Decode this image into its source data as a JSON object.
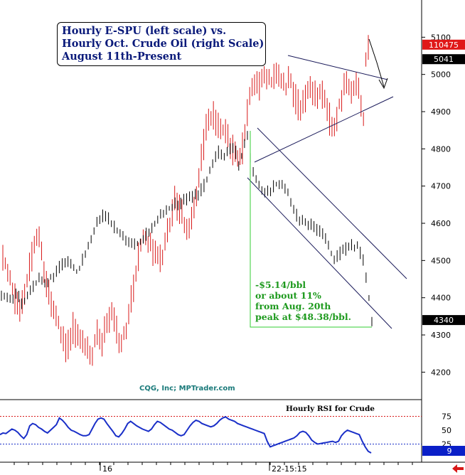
{
  "title_lines": [
    "Hourly E-SPU (left scale) vs.",
    "Hourly Oct. Crude Oil (right Scale)",
    "August 11th-Present"
  ],
  "annotation_lines": [
    "-$5.14/bbl",
    "or about 11%",
    "from Aug. 20th",
    "peak at $48.38/bbl."
  ],
  "watermark": "CQG, Inc; MPTrader.com",
  "colors": {
    "spx": "#d81818",
    "crude": "#000000",
    "rsi": "#1a2fc8",
    "channel": "#1a1a5a",
    "annotation": "#1e9a1e",
    "title": "#0a1a7a"
  },
  "chart_data": [
    {
      "type": "line",
      "title": "",
      "right_axis": {
        "ticks": [
          "5100",
          "5000",
          "4900",
          "4800",
          "4700",
          "4600",
          "4500",
          "4400",
          "4300",
          "4200"
        ],
        "range": [
          4130,
          5200
        ],
        "price_tags": [
          {
            "label": "110475",
            "value": 5080,
            "color": "#e01818"
          },
          {
            "label": "5041",
            "value": 5041,
            "color": "#000000"
          },
          {
            "label": "4340",
            "value": 4340,
            "color": "#000000"
          }
        ]
      },
      "x_axis": {
        "ticks": [
          "16",
          "22-15:15"
        ]
      },
      "series": [
        {
          "key": "spx",
          "style": "bars",
          "values": [
            4510,
            4490,
            4470,
            4450,
            4420,
            4400,
            4390,
            4380,
            4400,
            4420,
            4450,
            4480,
            4510,
            4540,
            4570,
            4550,
            4520,
            4480,
            4440,
            4410,
            4390,
            4370,
            4350,
            4330,
            4300,
            4280,
            4260,
            4270,
            4290,
            4320,
            4310,
            4300,
            4290,
            4280,
            4270,
            4260,
            4250,
            4250,
            4280,
            4300,
            4290,
            4280,
            4310,
            4330,
            4350,
            4360,
            4340,
            4320,
            4290,
            4280,
            4300,
            4320,
            4350,
            4390,
            4430,
            4470,
            4510,
            4540,
            4570,
            4560,
            4550,
            4540,
            4530,
            4520,
            4510,
            4500,
            4510,
            4540,
            4570,
            4600,
            4630,
            4660,
            4650,
            4640,
            4620,
            4600,
            4590,
            4580,
            4600,
            4640,
            4680,
            4720,
            4770,
            4810,
            4850,
            4870,
            4880,
            4890,
            4880,
            4870,
            4860,
            4850,
            4840,
            4830,
            4810,
            4800,
            4790,
            4780,
            4770,
            4800,
            4850,
            4900,
            4940,
            4960,
            4980,
            4990,
            4970,
            4980,
            4990,
            5000,
            4990,
            4980,
            4990,
            5000,
            4990,
            4980,
            4970,
            4960,
            4980,
            4990,
            4950,
            4930,
            4920,
            4910,
            4920,
            4940,
            4950,
            4960,
            4950,
            4940,
            4950,
            4960,
            4950,
            4940,
            4910,
            4880,
            4860,
            4870,
            4890,
            4920,
            4940,
            4960,
            4980,
            4970,
            4960,
            4970,
            4980,
            4960,
            4900,
            4880,
            5040,
            5070
          ]
        },
        {
          "key": "crude",
          "style": "bars",
          "values": [
            4400,
            4405,
            4402,
            4398,
            4395,
            4410,
            4400,
            4380,
            4390,
            4410,
            4420,
            4430,
            4440,
            4450,
            4448,
            4440,
            4445,
            4455,
            4460,
            4470,
            4480,
            4490,
            4500,
            4495,
            4490,
            4480,
            4470,
            4480,
            4500,
            4520,
            4540,
            4560,
            4580,
            4600,
            4610,
            4620,
            4615,
            4610,
            4600,
            4590,
            4580,
            4570,
            4560,
            4555,
            4550,
            4545,
            4540,
            4545,
            4550,
            4560,
            4570,
            4580,
            4590,
            4600,
            4610,
            4620,
            4630,
            4635,
            4640,
            4645,
            4650,
            4652,
            4655,
            4660,
            4665,
            4668,
            4670,
            4675,
            4680,
            4690,
            4700,
            4720,
            4740,
            4760,
            4780,
            4790,
            4785,
            4780,
            4790,
            4800,
            4805,
            4790,
            4760,
            4780,
            4820,
            4840,
            4780,
            4740,
            4720,
            4700,
            4690,
            4680,
            4685,
            4690,
            4700,
            4705,
            4710,
            4700,
            4690,
            4680,
            4660,
            4640,
            4620,
            4610,
            4605,
            4600,
            4598,
            4595,
            4590,
            4585,
            4580,
            4570,
            4560,
            4540,
            4520,
            4500,
            4510,
            4520,
            4525,
            4530,
            4535,
            4540,
            4535,
            4540,
            4520,
            4500,
            4450,
            4400,
            4340
          ]
        },
        {
          "key": "rsi",
          "style": "line",
          "levels": [
            75,
            50,
            25
          ],
          "current": "9",
          "label": "Hourly RSI for Crude",
          "values": [
            42,
            45,
            44,
            48,
            52,
            50,
            46,
            40,
            35,
            42,
            58,
            62,
            60,
            55,
            52,
            48,
            45,
            50,
            55,
            60,
            72,
            68,
            62,
            55,
            50,
            48,
            45,
            42,
            40,
            40,
            42,
            52,
            62,
            70,
            72,
            70,
            62,
            55,
            48,
            40,
            38,
            44,
            52,
            62,
            66,
            62,
            58,
            55,
            52,
            50,
            48,
            52,
            60,
            66,
            64,
            60,
            56,
            52,
            50,
            46,
            42,
            40,
            42,
            50,
            58,
            64,
            68,
            66,
            62,
            60,
            58,
            56,
            58,
            62,
            68,
            72,
            74,
            70,
            68,
            66,
            62,
            60,
            58,
            56,
            54,
            52,
            50,
            48,
            46,
            44,
            30,
            20,
            22,
            24,
            26,
            28,
            30,
            32,
            34,
            36,
            40,
            46,
            48,
            46,
            40,
            32,
            28,
            25,
            26,
            27,
            28,
            29,
            30,
            28,
            30,
            40,
            46,
            50,
            48,
            46,
            44,
            42,
            30,
            20,
            12,
            9
          ]
        }
      ]
    }
  ]
}
